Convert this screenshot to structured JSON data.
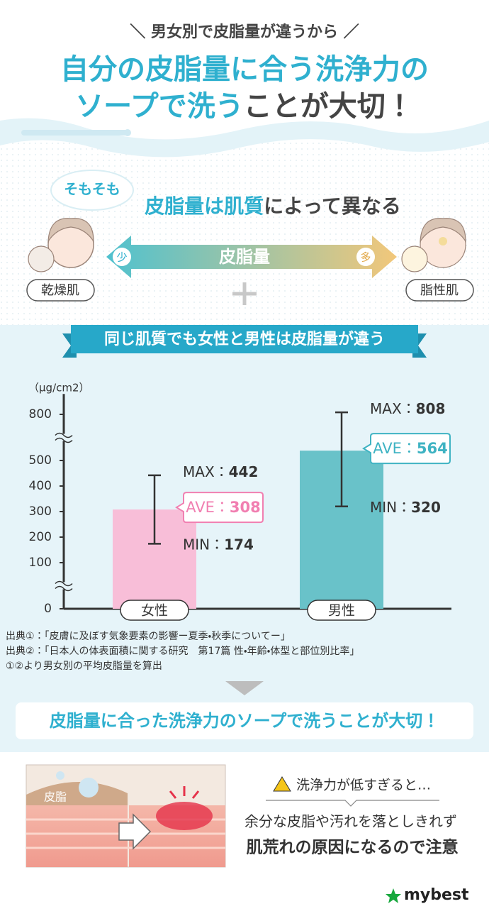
{
  "header": {
    "subtitle": "＼ 男女別で皮脂量が違うから ／",
    "title_line1": "自分の皮脂量に合う洗浄力の",
    "title_line2_a": "ソープで洗う",
    "title_line2_b": "ことが大切！"
  },
  "intro": {
    "badge": "そもそも",
    "heading_a": "皮脂量は肌質",
    "heading_b": "によって異なる",
    "left_label": "乾燥肌",
    "right_label": "脂性肌",
    "scale_label": "皮脂量",
    "scale_low": "少",
    "scale_high": "多"
  },
  "banner": "同じ肌質でも女性と男性は皮脂量が違う",
  "chart_data": {
    "type": "bar",
    "y_unit_label": "（μg/cm2）",
    "categories": [
      "女性",
      "男性"
    ],
    "values": [
      308,
      564
    ],
    "min": [
      174,
      320
    ],
    "max": [
      442,
      808
    ],
    "colors": [
      "#f8bed8",
      "#69c2c9"
    ],
    "label_colors": [
      "#f17fb1",
      "#3fb3c3"
    ],
    "stat_labels": {
      "max": "MAX：",
      "ave": "AVE：",
      "min": "MIN："
    },
    "ylim": [
      0,
      880
    ],
    "yticks": [
      0,
      100,
      200,
      300,
      400,
      500,
      800
    ],
    "y_breaks": [
      [
        0,
        100
      ],
      [
        500,
        800
      ]
    ]
  },
  "sources": [
    "出典①：「皮膚に及ぼす気象要素の影響ー夏季・秋季についてー」",
    "出典②：「日本人の体表面積に関する研究　第17篇 性・年齢・体型と部位別比率」",
    "①②より男女別の平均皮脂量を算出"
  ],
  "conclusion": "皮脂量に合った洗浄力のソープで洗うことが大切！",
  "warning": {
    "illustration_label": "皮脂",
    "heading": "洗浄力が低すぎると…",
    "line1": "余分な皮脂や汚れを落としきれず",
    "line2": "肌荒れの原因になるので注意"
  },
  "logo": "mybest"
}
